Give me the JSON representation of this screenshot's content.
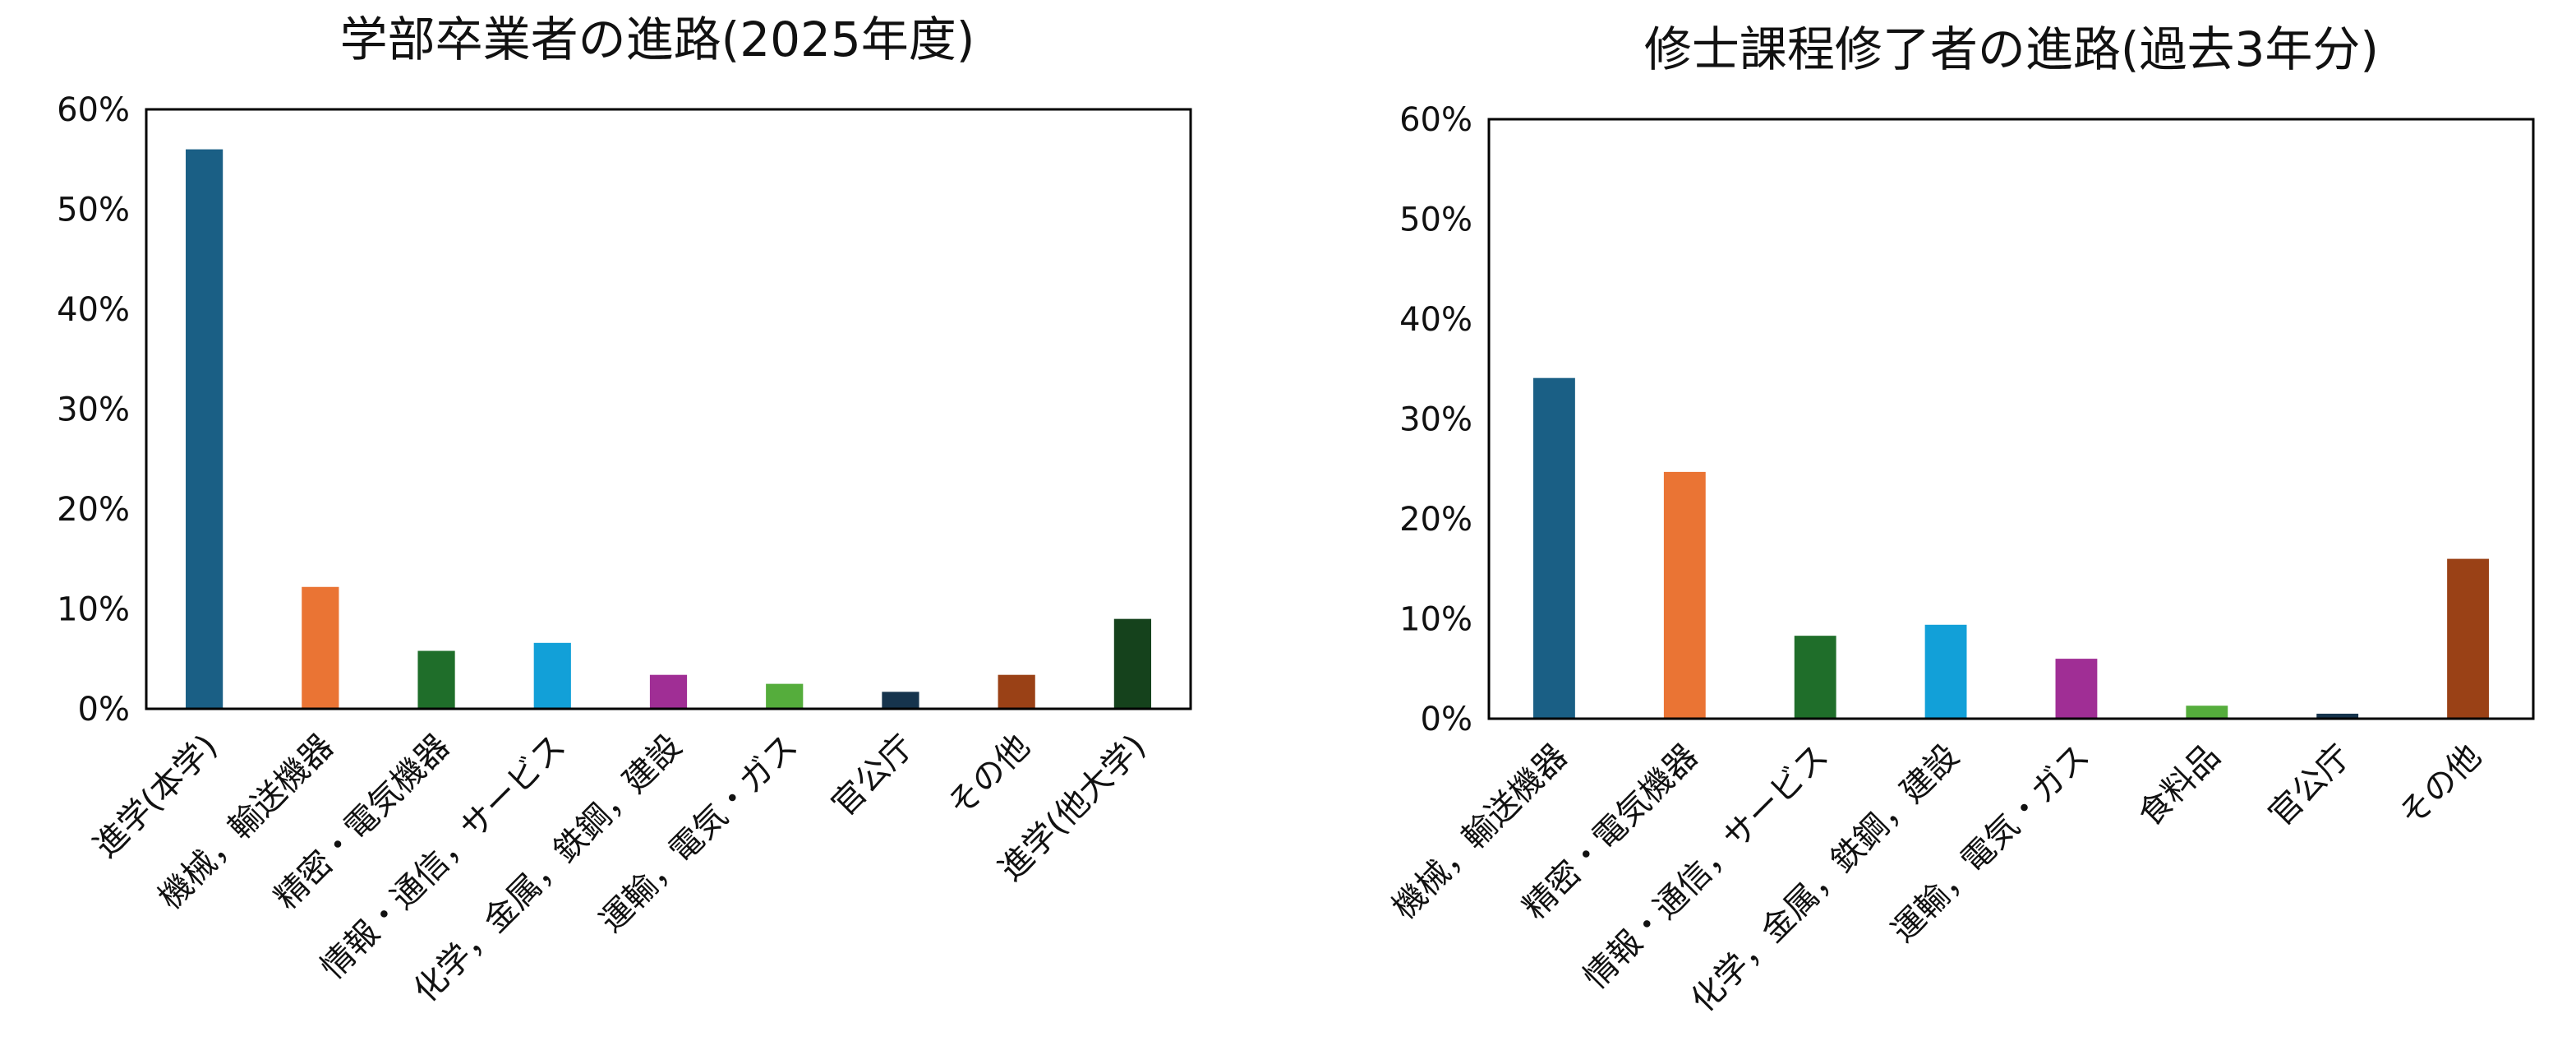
{
  "chart_data": [
    {
      "type": "bar",
      "title": "学部卒業者の進路(2025年度)",
      "categories": [
        "進学(本学)",
        "機械，輸送機器",
        "精密・電気機器",
        "情報・通信，サービス",
        "化学，金属，鉄鋼，建設",
        "運輸，電気・ガス",
        "官公庁",
        "その他",
        "進学(他大学)"
      ],
      "values": [
        0.56,
        0.122,
        0.058,
        0.066,
        0.034,
        0.025,
        0.017,
        0.034,
        0.09
      ],
      "colors": [
        "#1a5f85",
        "#ea7434",
        "#1f6e2a",
        "#12a0d8",
        "#a02e95",
        "#55ad3c",
        "#16344d",
        "#9a4116",
        "#15421c"
      ],
      "ylim": [
        0,
        0.6
      ],
      "yticks": [
        "0%",
        "10%",
        "20%",
        "30%",
        "40%",
        "50%",
        "60%"
      ],
      "grid": false,
      "legend": "none"
    },
    {
      "type": "bar",
      "title": "修士課程修了者の進路(過去3年分)",
      "categories": [
        "機械，輸送機器",
        "精密・電気機器",
        "情報・通信，サービス",
        "化学，金属，鉄鋼，建設",
        "運輸，電気・ガス",
        "食料品",
        "官公庁",
        "その他"
      ],
      "values": [
        0.341,
        0.247,
        0.083,
        0.094,
        0.06,
        0.013,
        0.005,
        0.16
      ],
      "colors": [
        "#1a5f85",
        "#ea7434",
        "#1f6e2a",
        "#12a0d8",
        "#a02e95",
        "#55ad3c",
        "#16344d",
        "#9a4116"
      ],
      "ylim": [
        0,
        0.6
      ],
      "yticks": [
        "0%",
        "10%",
        "20%",
        "30%",
        "40%",
        "50%",
        "60%"
      ],
      "grid": false,
      "legend": "none"
    }
  ]
}
